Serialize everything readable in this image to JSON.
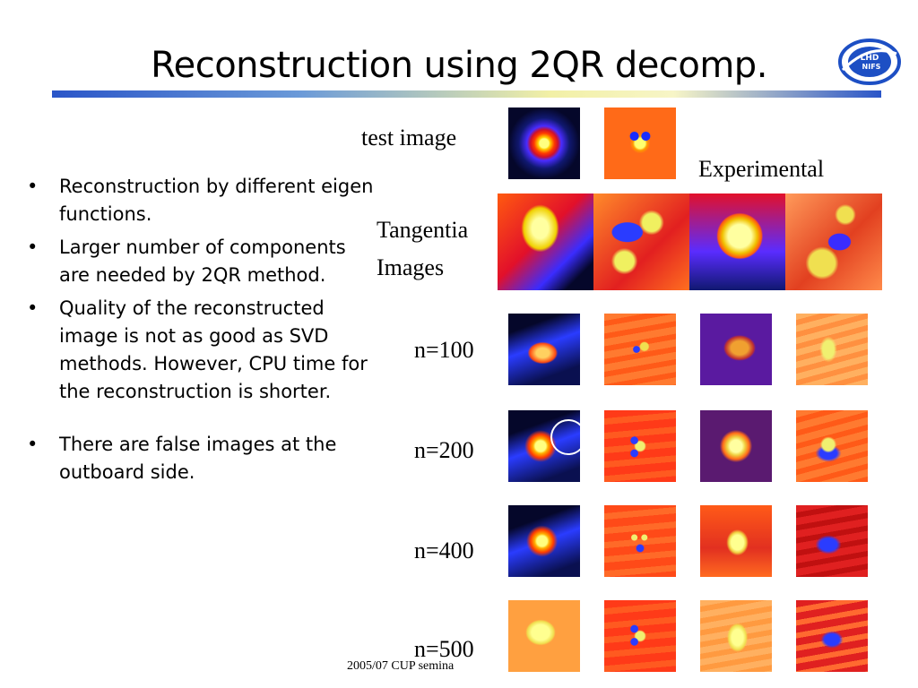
{
  "slide": {
    "title": "Reconstruction using 2QR decomp.",
    "bullets": [
      "Reconstruction by different eigen functions.",
      "Larger number of components are needed by 2QR method.",
      "Quality of the reconstructed image is not as good as SVD methods. However, CPU time for the reconstruction is shorter.",
      "There are false images at the outboard side."
    ],
    "labels": {
      "test_image": "test image",
      "experimental": "Experimental",
      "tangential": "Tangentia",
      "images": "Images",
      "n100": "n=100",
      "n200": "n=200",
      "n400": "n=400",
      "n500": "n=500"
    },
    "logo_text": "LHD NIFS",
    "footer": "2005/07 CUP semina"
  },
  "colors": {
    "title_bar_start": "#2a55c8",
    "title_bar_mid": "#f2f0a6",
    "logo_blue": "#1d4fc4"
  },
  "icons": [
    "lhd-nifs-logo-icon"
  ]
}
